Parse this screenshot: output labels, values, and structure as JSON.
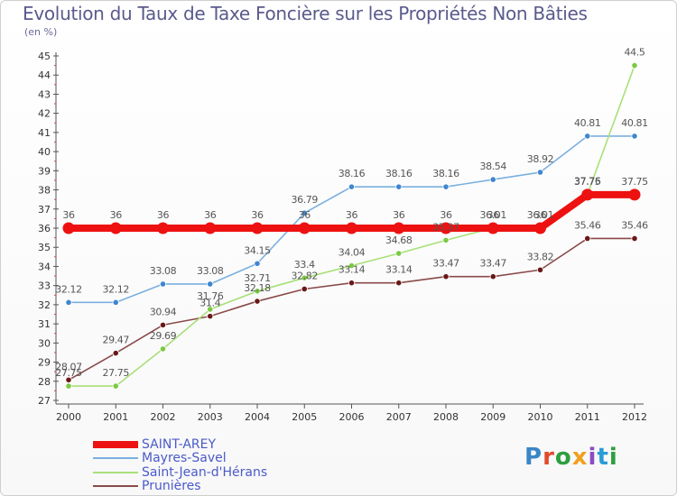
{
  "chart_data": {
    "type": "line",
    "title": "Evolution du Taux de Taxe Foncière sur les Propriétés Non Bâties",
    "subtitle": "(en %)",
    "x": [
      "2000",
      "2001",
      "2002",
      "2003",
      "2004",
      "2005",
      "2006",
      "2007",
      "2008",
      "2009",
      "2010",
      "2011",
      "2012"
    ],
    "ylim": [
      27,
      45
    ],
    "yticks": [
      27,
      28,
      29,
      30,
      31,
      32,
      33,
      34,
      35,
      36,
      37,
      38,
      39,
      40,
      41,
      42,
      43,
      44,
      45
    ],
    "grid": false,
    "legend_position": "bottom-left",
    "series": [
      {
        "name": "SAINT-AREY",
        "color": "#ee1111",
        "values": [
          36,
          36,
          36,
          36,
          36,
          36,
          36,
          36,
          36,
          36,
          36,
          37.75,
          37.75
        ],
        "labels": [
          "36",
          "36",
          "36",
          "36",
          "36",
          "36",
          "36",
          "36",
          "36",
          "36",
          "36",
          "37.75",
          "37.75"
        ]
      },
      {
        "name": "Mayres-Savel",
        "color": "#7ab0e0",
        "marker_color": "#3f86d0",
        "values": [
          32.12,
          32.12,
          33.08,
          33.08,
          34.15,
          36.79,
          38.16,
          38.16,
          38.16,
          38.54,
          38.92,
          40.81,
          40.81
        ],
        "labels": [
          "32.12",
          "32.12",
          "33.08",
          "33.08",
          "34.15",
          "36.79",
          "38.16",
          "38.16",
          "38.16",
          "38.54",
          "38.92",
          "40.81",
          "40.81"
        ]
      },
      {
        "name": "Saint-Jean-d'Hérans",
        "color": "#a8e078",
        "marker_color": "#7ac943",
        "values": [
          27.75,
          27.75,
          29.69,
          31.76,
          32.71,
          33.4,
          34.04,
          34.68,
          35.37,
          36.01,
          36.01,
          37.76,
          44.5
        ],
        "labels": [
          "27.75",
          "27.75",
          "29.69",
          "31.76",
          "32.71",
          "33.4",
          "34.04",
          "34.68",
          "35.37",
          "36.01",
          "36.01",
          "37.76",
          "44.5"
        ]
      },
      {
        "name": "Prunières",
        "color": "#8a4a4a",
        "marker_color": "#6a1818",
        "values": [
          28.07,
          29.47,
          30.94,
          31.4,
          32.18,
          32.82,
          33.14,
          33.14,
          33.47,
          33.47,
          33.82,
          35.46,
          35.46
        ],
        "labels": [
          "28.07",
          "29.47",
          "30.94",
          "31.4",
          "32.18",
          "32.82",
          "33.14",
          "33.14",
          "33.47",
          "33.47",
          "33.82",
          "35.46",
          "35.46"
        ]
      }
    ]
  },
  "logo": {
    "letters": [
      "P",
      "r",
      "o",
      "x",
      "i",
      "t",
      "i"
    ]
  }
}
